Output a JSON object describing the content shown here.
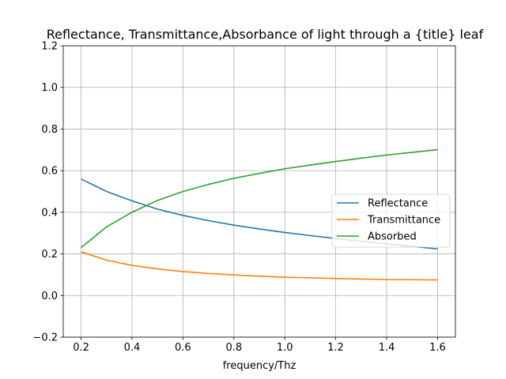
{
  "chart_data": {
    "type": "line",
    "title": "Reflectance, Transmittance,Absorbance of light through a {title} leaf",
    "xlabel": "frequency/Thz",
    "ylabel": "",
    "xlim": [
      0.13,
      1.67
    ],
    "ylim": [
      -0.2,
      1.2
    ],
    "xticks": [
      0.2,
      0.4,
      0.6,
      0.8,
      1.0,
      1.2,
      1.4,
      1.6
    ],
    "xtick_labels": [
      "0.2",
      "0.4",
      "0.6",
      "0.8",
      "1.0",
      "1.2",
      "1.4",
      "1.6"
    ],
    "yticks": [
      -0.2,
      0.0,
      0.2,
      0.4,
      0.6,
      0.8,
      1.0,
      1.2
    ],
    "ytick_labels": [
      "−0.2",
      "0.0",
      "0.2",
      "0.4",
      "0.6",
      "0.8",
      "1.0",
      "1.2"
    ],
    "grid": true,
    "legend_position": "center-right",
    "x": [
      0.2,
      0.3,
      0.4,
      0.5,
      0.6,
      0.7,
      0.8,
      0.9,
      1.0,
      1.1,
      1.2,
      1.3,
      1.4,
      1.5,
      1.6
    ],
    "series": [
      {
        "name": "Reflectance",
        "color": "#1f77b4",
        "values": [
          0.56,
          0.5,
          0.455,
          0.415,
          0.385,
          0.36,
          0.338,
          0.32,
          0.303,
          0.288,
          0.274,
          0.261,
          0.248,
          0.236,
          0.224
        ]
      },
      {
        "name": "Transmittance",
        "color": "#ff7f0e",
        "values": [
          0.21,
          0.17,
          0.145,
          0.128,
          0.115,
          0.106,
          0.099,
          0.093,
          0.088,
          0.085,
          0.082,
          0.079,
          0.077,
          0.076,
          0.075
        ]
      },
      {
        "name": "Absorbed",
        "color": "#2ca02c",
        "values": [
          0.23,
          0.33,
          0.4,
          0.457,
          0.5,
          0.534,
          0.563,
          0.587,
          0.609,
          0.627,
          0.644,
          0.66,
          0.675,
          0.688,
          0.701
        ]
      }
    ]
  }
}
